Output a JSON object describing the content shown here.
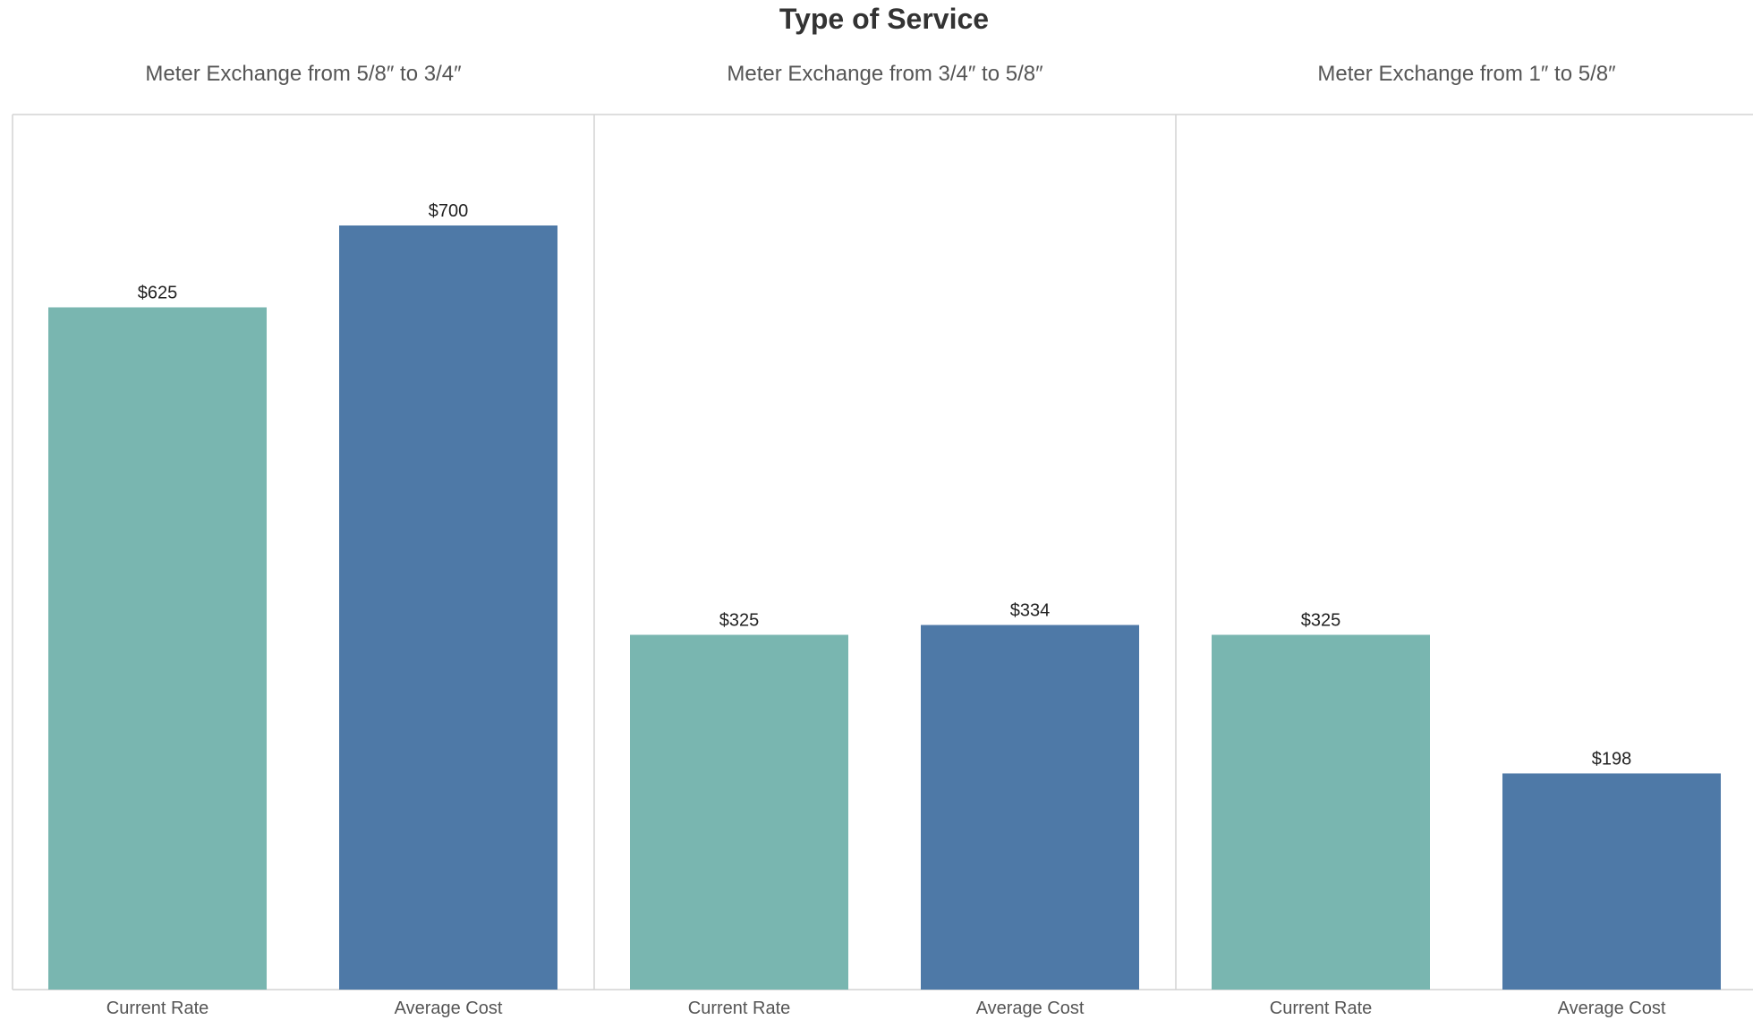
{
  "chart_data": {
    "type": "bar",
    "title": "Type of Service",
    "categories": [
      "Current Rate",
      "Average Cost"
    ],
    "colors": {
      "Current Rate": "#79b6b0",
      "Average Cost": "#4e79a7"
    },
    "panel_border_color": "#d4d4d4",
    "ylim": [
      0,
      855
    ],
    "panels": [
      {
        "name": "Meter Exchange from 5/8″ to 3/4″",
        "values": [
          625,
          700
        ],
        "labels": [
          "$625",
          "$700"
        ]
      },
      {
        "name": "Meter Exchange from 3/4″ to 5/8″",
        "values": [
          325,
          334
        ],
        "labels": [
          "$325",
          "$334"
        ]
      },
      {
        "name": "Meter Exchange from 1″ to 5/8″",
        "values": [
          325,
          198
        ],
        "labels": [
          "$325",
          "$198"
        ]
      }
    ]
  }
}
